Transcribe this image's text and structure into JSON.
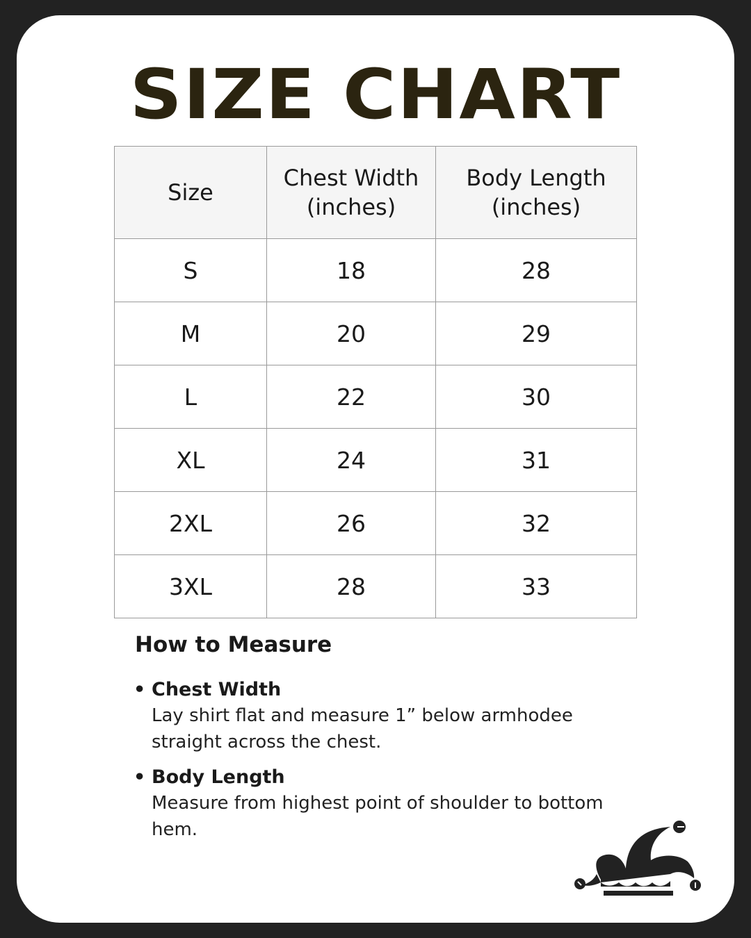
{
  "title": "SIZE CHART",
  "table": {
    "headers": [
      {
        "line1": "Size",
        "line2": ""
      },
      {
        "line1": "Chest Width",
        "line2": "(inches)"
      },
      {
        "line1": "Body Length",
        "line2": "(inches)"
      }
    ],
    "rows": [
      [
        "S",
        "18",
        "28"
      ],
      [
        "M",
        "20",
        "29"
      ],
      [
        "L",
        "22",
        "30"
      ],
      [
        "XL",
        "24",
        "31"
      ],
      [
        "2XL",
        "26",
        "32"
      ],
      [
        "3XL",
        "28",
        "33"
      ]
    ]
  },
  "how_to_measure": {
    "heading": "How to Measure",
    "items": [
      {
        "title": "Chest Width",
        "line1": "Lay shirt flat and measure 1” below armhodee",
        "line2": "straight across the chest."
      },
      {
        "title": "Body Length",
        "line1": "Measure from highest point of shoulder to bottom",
        "line2": "hem."
      }
    ]
  },
  "logo": {
    "icon": "jester-hat-icon"
  },
  "colors": {
    "frame": "#222222",
    "title": "#2b2410",
    "header_bg": "#f5f5f5",
    "border": "#9a9a9a"
  }
}
